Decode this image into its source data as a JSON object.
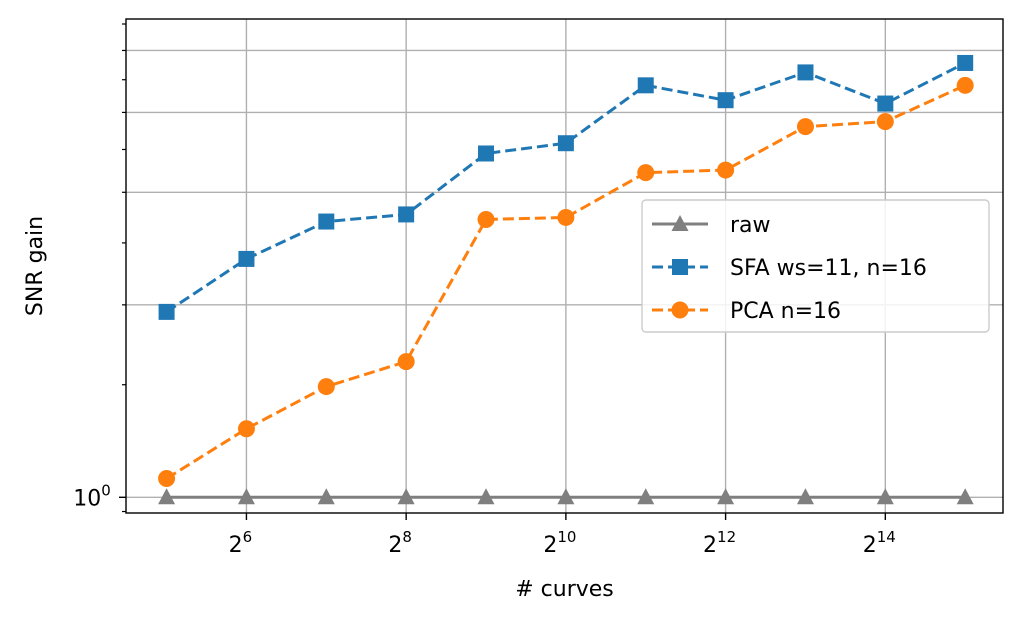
{
  "chart_data": {
    "type": "line",
    "xlabel": "# curves",
    "ylabel": "SNR gain",
    "x_scale": "log2",
    "y_scale": "log",
    "grid": true,
    "legend_position": "center-right",
    "x": [
      32,
      64,
      128,
      256,
      512,
      1024,
      2048,
      4096,
      8192,
      16384,
      32768
    ],
    "x_ticks": [
      {
        "value": 64,
        "base": "2",
        "exp": "6"
      },
      {
        "value": 256,
        "base": "2",
        "exp": "8"
      },
      {
        "value": 1024,
        "base": "2",
        "exp": "10"
      },
      {
        "value": 4096,
        "base": "2",
        "exp": "12"
      },
      {
        "value": 16384,
        "base": "2",
        "exp": "14"
      }
    ],
    "y_ticks": [
      {
        "value": 1,
        "base": "10",
        "exp": "0"
      }
    ],
    "series": [
      {
        "name": "raw",
        "color": "#7f7f7f",
        "marker": "triangle",
        "line": "solid",
        "values": [
          1,
          1,
          1,
          1,
          1,
          1,
          1,
          1,
          1,
          1,
          1
        ]
      },
      {
        "name": "SFA ws=11, n=16",
        "color": "#1f77b4",
        "marker": "square",
        "line": "dashed",
        "values": [
          1.95,
          2.36,
          2.7,
          2.77,
          3.45,
          3.58,
          4.41,
          4.18,
          4.62,
          4.13,
          4.78
        ]
      },
      {
        "name": "PCA n=16",
        "color": "#ff7f0e",
        "marker": "circle",
        "line": "dashed",
        "values": [
          1.07,
          1.28,
          1.49,
          1.63,
          2.72,
          2.74,
          3.22,
          3.25,
          3.8,
          3.87,
          4.41
        ]
      }
    ]
  }
}
